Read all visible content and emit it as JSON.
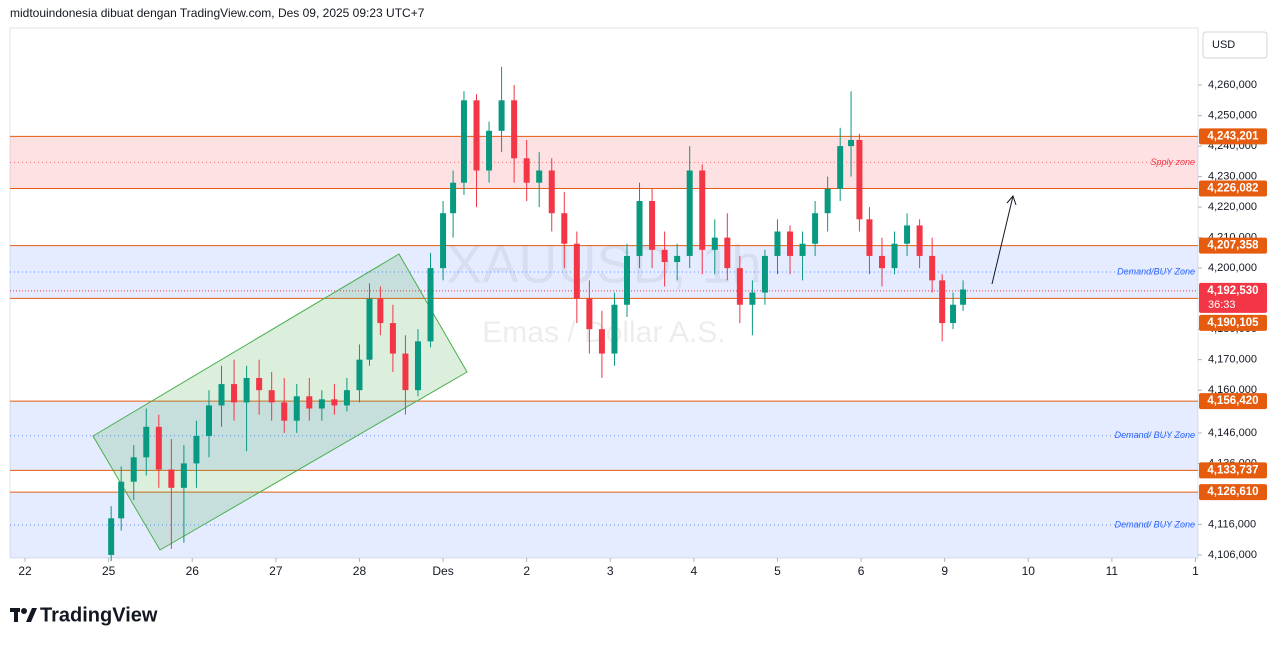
{
  "header": "midtouindonesia dibuat dengan TradingView.com, Des 09, 2025 09:23 UTC+7",
  "currency": "USD",
  "logo": "TradingView",
  "chart_data": {
    "type": "candlestick",
    "watermark": {
      "symbol": "XAUUSD, 1h",
      "name": "Emas / Dollar A.S."
    },
    "up_color": "#089981",
    "down_color": "#f23645",
    "ylim": [
      4105000,
      4278700
    ],
    "yticks": [
      {
        "value": 4260000,
        "label": "4,260,000"
      },
      {
        "value": 4250000,
        "label": "4,250,000"
      },
      {
        "value": 4240000,
        "label": "4,240,000"
      },
      {
        "value": 4230000,
        "label": "4,230,000"
      },
      {
        "value": 4220000,
        "label": "4,220,000"
      },
      {
        "value": 4210000,
        "label": "4,210,000"
      },
      {
        "value": 4200000,
        "label": "4,200,000"
      },
      {
        "value": 4180000,
        "label": "4,180,000"
      },
      {
        "value": 4170000,
        "label": "4,170,000"
      },
      {
        "value": 4160000,
        "label": "4,160,000"
      },
      {
        "value": 4146000,
        "label": "4,146,000"
      },
      {
        "value": 4136000,
        "label": "4,136,000"
      },
      {
        "value": 4116000,
        "label": "4,116,000"
      },
      {
        "value": 4106000,
        "label": "4,106,000"
      }
    ],
    "xlim": [
      -0.18,
      14.03
    ],
    "xticks": [
      {
        "value": 0,
        "label": "22"
      },
      {
        "value": 1,
        "label": "25"
      },
      {
        "value": 2,
        "label": "26"
      },
      {
        "value": 3,
        "label": "27"
      },
      {
        "value": 4,
        "label": "28"
      },
      {
        "value": 5,
        "label": "Des"
      },
      {
        "value": 6,
        "label": "2"
      },
      {
        "value": 7,
        "label": "3"
      },
      {
        "value": 8,
        "label": "4"
      },
      {
        "value": 9,
        "label": "5"
      },
      {
        "value": 10,
        "label": "6"
      },
      {
        "value": 11,
        "label": "9"
      },
      {
        "value": 12,
        "label": "10"
      },
      {
        "value": 13,
        "label": "11"
      },
      {
        "value": 14,
        "label": "1"
      }
    ],
    "levels": [
      {
        "value": 4243201,
        "label": "4,243,201"
      },
      {
        "value": 4226082,
        "label": "4,226,082"
      },
      {
        "value": 4207358,
        "label": "4,207,358"
      },
      {
        "value": 4190105,
        "label": "4,190,105"
      },
      {
        "value": 4156420,
        "label": "4,156,420"
      },
      {
        "value": 4133737,
        "label": "4,133,737"
      },
      {
        "value": 4126610,
        "label": "4,126,610"
      }
    ],
    "level_color": "#e65c0e",
    "current_price": {
      "value": 4192530,
      "label": "4,192,530",
      "countdown": "36:33",
      "color": "#f23645"
    },
    "zones": [
      {
        "name": "Spply zone",
        "color": "#f23645"
      },
      {
        "name": "Demand/BUY Zone",
        "color": "#2962ff"
      },
      {
        "name": "Demand/ BUY Zone",
        "color": "#2962ff"
      },
      {
        "name": "Demand/ BUY Zone",
        "color": "#2962ff"
      }
    ],
    "candles": [
      {
        "x": 1.03,
        "open": 4106000,
        "high": 4122000,
        "low": 4104000,
        "close": 4118000
      },
      {
        "x": 1.15,
        "open": 4118000,
        "high": 4135000,
        "low": 4114000,
        "close": 4130000
      },
      {
        "x": 1.3,
        "open": 4130000,
        "high": 4142000,
        "low": 4124000,
        "close": 4138000
      },
      {
        "x": 1.45,
        "open": 4138000,
        "high": 4154000,
        "low": 4132000,
        "close": 4148000
      },
      {
        "x": 1.6,
        "open": 4148000,
        "high": 4152000,
        "low": 4128000,
        "close": 4134000
      },
      {
        "x": 1.75,
        "open": 4134000,
        "high": 4144000,
        "low": 4108000,
        "close": 4128000
      },
      {
        "x": 1.9,
        "open": 4128000,
        "high": 4142000,
        "low": 4110000,
        "close": 4136000
      },
      {
        "x": 2.05,
        "open": 4136000,
        "high": 4150000,
        "low": 4128000,
        "close": 4145000
      },
      {
        "x": 2.2,
        "open": 4145000,
        "high": 4160000,
        "low": 4138000,
        "close": 4155000
      },
      {
        "x": 2.35,
        "open": 4155000,
        "high": 4168000,
        "low": 4148000,
        "close": 4162000
      },
      {
        "x": 2.5,
        "open": 4162000,
        "high": 4170000,
        "low": 4150000,
        "close": 4156000
      },
      {
        "x": 2.65,
        "open": 4156000,
        "high": 4168000,
        "low": 4140000,
        "close": 4164000
      },
      {
        "x": 2.8,
        "open": 4164000,
        "high": 4170000,
        "low": 4152000,
        "close": 4160000
      },
      {
        "x": 2.95,
        "open": 4160000,
        "high": 4166000,
        "low": 4150000,
        "close": 4156000
      },
      {
        "x": 3.1,
        "open": 4156000,
        "high": 4164000,
        "low": 4146000,
        "close": 4150000
      },
      {
        "x": 3.25,
        "open": 4150000,
        "high": 4162000,
        "low": 4146000,
        "close": 4158000
      },
      {
        "x": 3.4,
        "open": 4158000,
        "high": 4164000,
        "low": 4150000,
        "close": 4154000
      },
      {
        "x": 3.55,
        "open": 4154000,
        "high": 4160000,
        "low": 4150000,
        "close": 4157000
      },
      {
        "x": 3.7,
        "open": 4157000,
        "high": 4162000,
        "low": 4152000,
        "close": 4155000
      },
      {
        "x": 3.85,
        "open": 4155000,
        "high": 4164000,
        "low": 4153000,
        "close": 4160000
      },
      {
        "x": 4.0,
        "open": 4160000,
        "high": 4175000,
        "low": 4156000,
        "close": 4170000
      },
      {
        "x": 4.12,
        "open": 4170000,
        "high": 4195000,
        "low": 4168000,
        "close": 4190000
      },
      {
        "x": 4.25,
        "open": 4190000,
        "high": 4194000,
        "low": 4178000,
        "close": 4182000
      },
      {
        "x": 4.4,
        "open": 4182000,
        "high": 4188000,
        "low": 4166000,
        "close": 4172000
      },
      {
        "x": 4.55,
        "open": 4172000,
        "high": 4178000,
        "low": 4152000,
        "close": 4160000
      },
      {
        "x": 4.7,
        "open": 4160000,
        "high": 4180000,
        "low": 4158000,
        "close": 4176000
      },
      {
        "x": 4.85,
        "open": 4176000,
        "high": 4205000,
        "low": 4174000,
        "close": 4200000
      },
      {
        "x": 5.0,
        "open": 4200000,
        "high": 4222000,
        "low": 4196000,
        "close": 4218000
      },
      {
        "x": 5.12,
        "open": 4218000,
        "high": 4232000,
        "low": 4210000,
        "close": 4228000
      },
      {
        "x": 5.25,
        "open": 4228000,
        "high": 4258000,
        "low": 4224000,
        "close": 4255000
      },
      {
        "x": 5.4,
        "open": 4255000,
        "high": 4257000,
        "low": 4220000,
        "close": 4232000
      },
      {
        "x": 5.55,
        "open": 4232000,
        "high": 4248000,
        "low": 4228000,
        "close": 4245000
      },
      {
        "x": 5.7,
        "open": 4245000,
        "high": 4266000,
        "low": 4238000,
        "close": 4255000
      },
      {
        "x": 5.85,
        "open": 4255000,
        "high": 4260000,
        "low": 4228000,
        "close": 4236000
      },
      {
        "x": 6.0,
        "open": 4236000,
        "high": 4242000,
        "low": 4222000,
        "close": 4228000
      },
      {
        "x": 6.15,
        "open": 4228000,
        "high": 4238000,
        "low": 4220000,
        "close": 4232000
      },
      {
        "x": 6.3,
        "open": 4232000,
        "high": 4236000,
        "low": 4212000,
        "close": 4218000
      },
      {
        "x": 6.45,
        "open": 4218000,
        "high": 4225000,
        "low": 4200000,
        "close": 4208000
      },
      {
        "x": 6.6,
        "open": 4208000,
        "high": 4212000,
        "low": 4182000,
        "close": 4190000
      },
      {
        "x": 6.75,
        "open": 4190000,
        "high": 4196000,
        "low": 4172000,
        "close": 4180000
      },
      {
        "x": 6.9,
        "open": 4180000,
        "high": 4186000,
        "low": 4164000,
        "close": 4172000
      },
      {
        "x": 7.05,
        "open": 4172000,
        "high": 4192000,
        "low": 4168000,
        "close": 4188000
      },
      {
        "x": 7.2,
        "open": 4188000,
        "high": 4208000,
        "low": 4184000,
        "close": 4204000
      },
      {
        "x": 7.35,
        "open": 4204000,
        "high": 4228000,
        "low": 4200000,
        "close": 4222000
      },
      {
        "x": 7.5,
        "open": 4222000,
        "high": 4226000,
        "low": 4200000,
        "close": 4206000
      },
      {
        "x": 7.65,
        "open": 4206000,
        "high": 4212000,
        "low": 4194000,
        "close": 4202000
      },
      {
        "x": 7.8,
        "open": 4202000,
        "high": 4208000,
        "low": 4196000,
        "close": 4204000
      },
      {
        "x": 7.95,
        "open": 4204000,
        "high": 4240000,
        "low": 4200000,
        "close": 4232000
      },
      {
        "x": 8.1,
        "open": 4232000,
        "high": 4234000,
        "low": 4198000,
        "close": 4206000
      },
      {
        "x": 8.25,
        "open": 4206000,
        "high": 4216000,
        "low": 4198000,
        "close": 4210000
      },
      {
        "x": 8.4,
        "open": 4210000,
        "high": 4218000,
        "low": 4196000,
        "close": 4200000
      },
      {
        "x": 8.55,
        "open": 4200000,
        "high": 4204000,
        "low": 4182000,
        "close": 4188000
      },
      {
        "x": 8.7,
        "open": 4188000,
        "high": 4196000,
        "low": 4178000,
        "close": 4192000
      },
      {
        "x": 8.85,
        "open": 4192000,
        "high": 4206000,
        "low": 4188000,
        "close": 4204000
      },
      {
        "x": 9.0,
        "open": 4204000,
        "high": 4216000,
        "low": 4198000,
        "close": 4212000
      },
      {
        "x": 9.15,
        "open": 4212000,
        "high": 4214000,
        "low": 4198000,
        "close": 4204000
      },
      {
        "x": 9.3,
        "open": 4204000,
        "high": 4212000,
        "low": 4196000,
        "close": 4208000
      },
      {
        "x": 9.45,
        "open": 4208000,
        "high": 4222000,
        "low": 4204000,
        "close": 4218000
      },
      {
        "x": 9.6,
        "open": 4218000,
        "high": 4230000,
        "low": 4212000,
        "close": 4226000
      },
      {
        "x": 9.75,
        "open": 4226000,
        "high": 4246000,
        "low": 4222000,
        "close": 4240000
      },
      {
        "x": 9.88,
        "open": 4240000,
        "high": 4258000,
        "low": 4230000,
        "close": 4242000
      },
      {
        "x": 9.98,
        "open": 4242000,
        "high": 4244000,
        "low": 4212000,
        "close": 4216000
      },
      {
        "x": 10.1,
        "open": 4216000,
        "high": 4220000,
        "low": 4198000,
        "close": 4204000
      },
      {
        "x": 10.25,
        "open": 4204000,
        "high": 4210000,
        "low": 4194000,
        "close": 4200000
      },
      {
        "x": 10.4,
        "open": 4200000,
        "high": 4212000,
        "low": 4198000,
        "close": 4208000
      },
      {
        "x": 10.55,
        "open": 4208000,
        "high": 4218000,
        "low": 4204000,
        "close": 4214000
      },
      {
        "x": 10.7,
        "open": 4214000,
        "high": 4216000,
        "low": 4200000,
        "close": 4204000
      },
      {
        "x": 10.85,
        "open": 4204000,
        "high": 4210000,
        "low": 4192000,
        "close": 4196000
      },
      {
        "x": 10.97,
        "open": 4196000,
        "high": 4198000,
        "low": 4176000,
        "close": 4182000
      },
      {
        "x": 11.1,
        "open": 4182000,
        "high": 4192000,
        "low": 4180000,
        "close": 4188000
      },
      {
        "x": 11.22,
        "open": 4188000,
        "high": 4196000,
        "low": 4186000,
        "close": 4193000
      }
    ]
  }
}
